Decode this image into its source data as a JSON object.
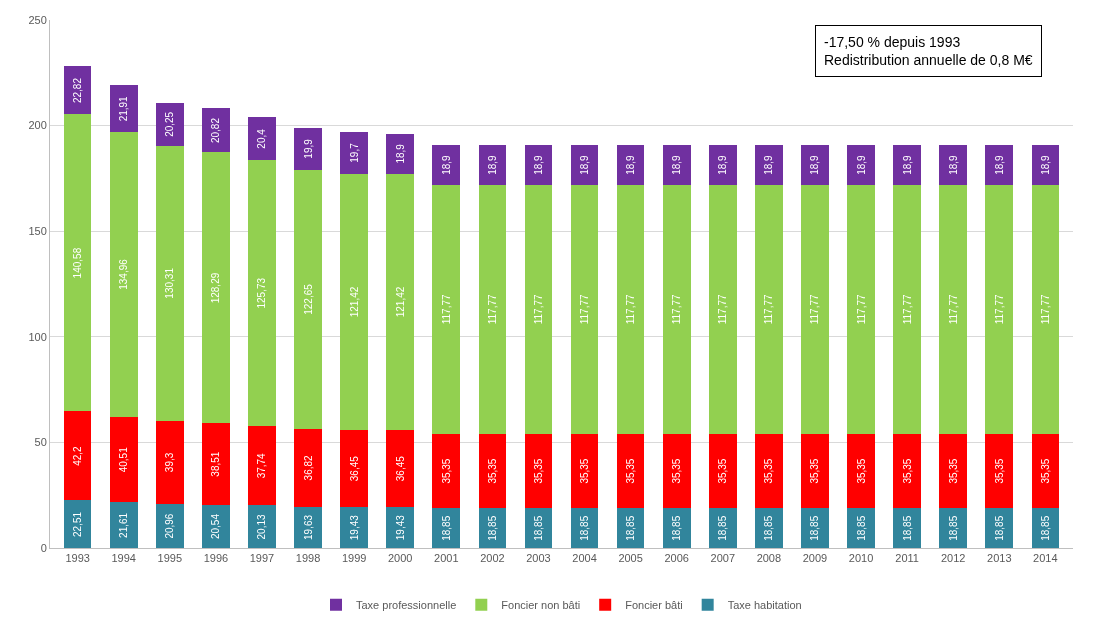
{
  "chart_data": {
    "type": "bar",
    "stacked": true,
    "categories": [
      "1993",
      "1994",
      "1995",
      "1996",
      "1997",
      "1998",
      "1999",
      "2000",
      "2001",
      "2002",
      "2003",
      "2004",
      "2005",
      "2006",
      "2007",
      "2008",
      "2009",
      "2010",
      "2011",
      "2012",
      "2013",
      "2014"
    ],
    "series": [
      {
        "name": "Taxe habitation",
        "color": "#31859c",
        "values": [
          22.51,
          21.61,
          20.96,
          20.54,
          20.13,
          19.63,
          19.43,
          19.43,
          18.85,
          18.85,
          18.85,
          18.85,
          18.85,
          18.85,
          18.85,
          18.85,
          18.85,
          18.85,
          18.85,
          18.85,
          18.85,
          18.85
        ],
        "value_labels": [
          "22,51",
          "21,61",
          "20,96",
          "20,54",
          "20,13",
          "19,63",
          "19,43",
          "19,43",
          "18,85",
          "18,85",
          "18,85",
          "18,85",
          "18,85",
          "18,85",
          "18,85",
          "18,85",
          "18,85",
          "18,85",
          "18,85",
          "18,85",
          "18,85",
          "18,85"
        ]
      },
      {
        "name": "Foncier bâti",
        "color": "#ff0000",
        "values": [
          42.2,
          40.51,
          39.3,
          38.51,
          37.74,
          36.82,
          36.45,
          36.45,
          35.35,
          35.35,
          35.35,
          35.35,
          35.35,
          35.35,
          35.35,
          35.35,
          35.35,
          35.35,
          35.35,
          35.35,
          35.35,
          35.35
        ],
        "value_labels": [
          "42,2",
          "40,51",
          "39,3",
          "38,51",
          "37,74",
          "36,82",
          "36,45",
          "36,45",
          "35,35",
          "35,35",
          "35,35",
          "35,35",
          "35,35",
          "35,35",
          "35,35",
          "35,35",
          "35,35",
          "35,35",
          "35,35",
          "35,35",
          "35,35",
          "35,35"
        ]
      },
      {
        "name": "Foncier non bâti",
        "color": "#92d050",
        "values": [
          140.58,
          134.96,
          130.31,
          128.29,
          125.73,
          122.65,
          121.42,
          121.42,
          117.77,
          117.77,
          117.77,
          117.77,
          117.77,
          117.77,
          117.77,
          117.77,
          117.77,
          117.77,
          117.77,
          117.77,
          117.77,
          117.77
        ],
        "value_labels": [
          "140,58",
          "134,96",
          "130,31",
          "128,29",
          "125,73",
          "122,65",
          "121,42",
          "121,42",
          "117,77",
          "117,77",
          "117,77",
          "117,77",
          "117,77",
          "117,77",
          "117,77",
          "117,77",
          "117,77",
          "117,77",
          "117,77",
          "117,77",
          "117,77",
          "117,77"
        ]
      },
      {
        "name": "Taxe professionnelle",
        "color": "#7030a0",
        "values": [
          22.82,
          21.91,
          20.25,
          20.82,
          20.4,
          19.9,
          19.7,
          18.9,
          18.9,
          18.9,
          18.9,
          18.9,
          18.9,
          18.9,
          18.9,
          18.9,
          18.9,
          18.9,
          18.9,
          18.9,
          18.9,
          18.9
        ],
        "value_labels": [
          "22,82",
          "21,91",
          "20,25",
          "20,82",
          "20,4",
          "19,9",
          "19,7",
          "18,9",
          "18,9",
          "18,9",
          "18,9",
          "18,9",
          "18,9",
          "18,9",
          "18,9",
          "18,9",
          "18,9",
          "18,9",
          "18,9",
          "18,9",
          "18,9",
          "18,9"
        ]
      }
    ],
    "ylim": [
      0,
      250
    ],
    "yticks": [
      0,
      50,
      100,
      150,
      200,
      250
    ],
    "grid": "y",
    "legend": "bottom",
    "annotations": [
      "-17,50 % depuis 1993\nRedistribution annuelle de 0,8 M€"
    ]
  }
}
